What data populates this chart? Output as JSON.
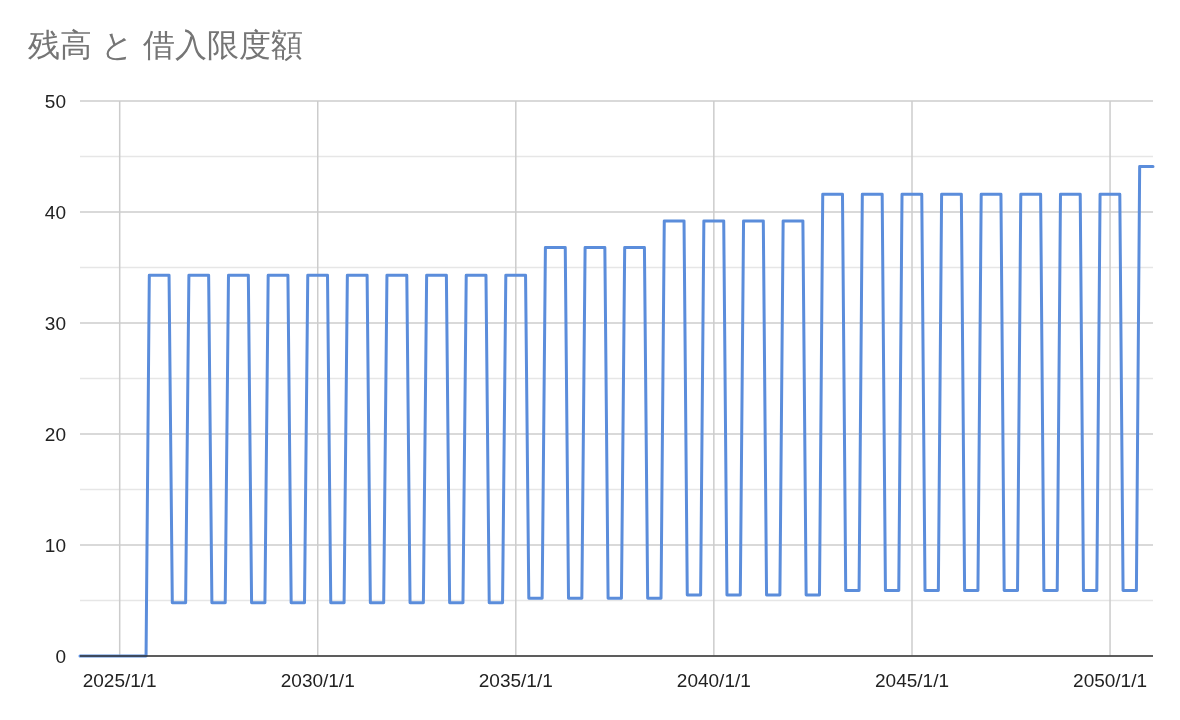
{
  "chart_data": {
    "type": "line",
    "title": "残高 と 借入限度額",
    "xlim": [
      "2024-01-01",
      "2051-02-01"
    ],
    "xticks": [
      {
        "value": "2025-01-01",
        "label": "2025/1/1"
      },
      {
        "value": "2030-01-01",
        "label": "2030/1/1"
      },
      {
        "value": "2035-01-01",
        "label": "2035/1/1"
      },
      {
        "value": "2040-01-01",
        "label": "2040/1/1"
      },
      {
        "value": "2045-01-01",
        "label": "2045/1/1"
      },
      {
        "value": "2050-01-01",
        "label": "2050/1/1"
      }
    ],
    "ylim": [
      0,
      50
    ],
    "yticks": [
      0,
      {
        "value": 5,
        "label": null
      },
      10,
      {
        "value": 15,
        "label": null
      },
      20,
      {
        "value": 25,
        "label": null
      },
      30,
      {
        "value": 35,
        "label": null
      },
      40,
      {
        "value": 45,
        "label": null
      },
      50
    ],
    "grid": true,
    "marker": "none",
    "line_style": "solid",
    "series": [
      {
        "color": "#5b8ddb",
        "x": [
          "2024-01-01",
          "2025-09-01",
          "2025-10-01",
          "2026-04-01",
          "2026-05-01",
          "2026-09-01",
          "2026-10-01",
          "2027-04-01",
          "2027-05-01",
          "2027-09-01",
          "2027-10-01",
          "2028-04-01",
          "2028-05-01",
          "2028-09-01",
          "2028-10-01",
          "2029-04-01",
          "2029-05-01",
          "2029-09-01",
          "2029-10-01",
          "2030-04-01",
          "2030-05-01",
          "2030-09-01",
          "2030-10-01",
          "2031-04-01",
          "2031-05-01",
          "2031-09-01",
          "2031-10-01",
          "2032-04-01",
          "2032-05-01",
          "2032-09-01",
          "2032-10-01",
          "2033-04-01",
          "2033-05-01",
          "2033-09-01",
          "2033-10-01",
          "2034-04-01",
          "2034-05-01",
          "2034-09-01",
          "2034-10-01",
          "2035-04-01",
          "2035-05-01",
          "2035-09-01",
          "2035-10-01",
          "2036-04-01",
          "2036-05-01",
          "2036-09-01",
          "2036-10-01",
          "2037-04-01",
          "2037-05-01",
          "2037-09-01",
          "2037-10-01",
          "2038-04-01",
          "2038-05-01",
          "2038-09-01",
          "2038-10-01",
          "2039-04-01",
          "2039-05-01",
          "2039-09-01",
          "2039-10-01",
          "2040-04-01",
          "2040-05-01",
          "2040-09-01",
          "2040-10-01",
          "2041-04-01",
          "2041-05-01",
          "2041-09-01",
          "2041-10-01",
          "2042-04-01",
          "2042-05-01",
          "2042-09-01",
          "2042-10-01",
          "2043-04-01",
          "2043-05-01",
          "2043-09-01",
          "2043-10-01",
          "2044-04-01",
          "2044-05-01",
          "2044-09-01",
          "2044-10-01",
          "2045-04-01",
          "2045-05-01",
          "2045-09-01",
          "2045-10-01",
          "2046-04-01",
          "2046-05-01",
          "2046-09-01",
          "2046-10-01",
          "2047-04-01",
          "2047-05-01",
          "2047-09-01",
          "2047-10-01",
          "2048-04-01",
          "2048-05-01",
          "2048-09-01",
          "2048-10-01",
          "2049-04-01",
          "2049-05-01",
          "2049-09-01",
          "2049-10-01",
          "2050-04-01",
          "2050-05-01",
          "2050-09-01",
          "2050-10-01",
          "2051-02-01"
        ],
        "values": [
          0,
          0,
          34.3,
          34.3,
          4.8,
          4.8,
          34.3,
          34.3,
          4.8,
          4.8,
          34.3,
          34.3,
          4.8,
          4.8,
          34.3,
          34.3,
          4.8,
          4.8,
          34.3,
          34.3,
          4.8,
          4.8,
          34.3,
          34.3,
          4.8,
          4.8,
          34.3,
          34.3,
          4.8,
          4.8,
          34.3,
          34.3,
          4.8,
          4.8,
          34.3,
          34.3,
          4.8,
          4.8,
          34.3,
          34.3,
          5.2,
          5.2,
          36.8,
          36.8,
          5.2,
          5.2,
          36.8,
          36.8,
          5.2,
          5.2,
          36.8,
          36.8,
          5.2,
          5.2,
          39.2,
          39.2,
          5.5,
          5.5,
          39.2,
          39.2,
          5.5,
          5.5,
          39.2,
          39.2,
          5.5,
          5.5,
          39.2,
          39.2,
          5.5,
          5.5,
          41.6,
          41.6,
          5.9,
          5.9,
          41.6,
          41.6,
          5.9,
          5.9,
          41.6,
          41.6,
          5.9,
          5.9,
          41.6,
          41.6,
          5.9,
          5.9,
          41.6,
          41.6,
          5.9,
          5.9,
          41.6,
          41.6,
          5.9,
          5.9,
          41.6,
          41.6,
          5.9,
          5.9,
          41.6,
          41.6,
          5.9,
          5.9,
          44.1,
          44.1
        ]
      }
    ]
  }
}
